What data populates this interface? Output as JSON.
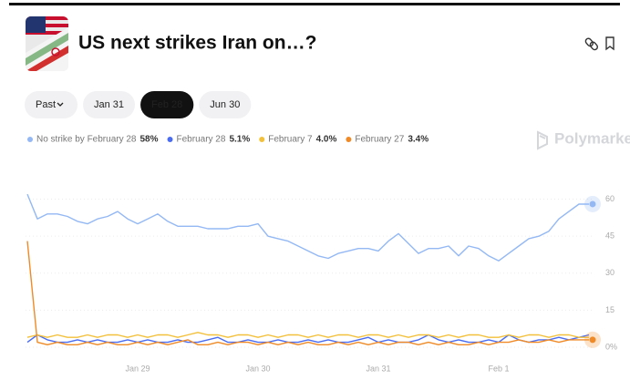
{
  "header": {
    "title": "US next strikes Iran on…?"
  },
  "filters": {
    "options": [
      "Past",
      "Jan 31",
      "Feb 28",
      "Jun 30"
    ],
    "selected": 2
  },
  "watermark": "Polymarket",
  "chart_data": {
    "type": "line",
    "categories": [
      null,
      null,
      null,
      null,
      null,
      null,
      null,
      null,
      null,
      null,
      null,
      "Jan 29",
      null,
      null,
      null,
      null,
      null,
      null,
      null,
      null,
      null,
      null,
      null,
      "Jan 30",
      null,
      null,
      null,
      null,
      null,
      null,
      null,
      null,
      null,
      null,
      null,
      "Jan 31",
      null,
      null,
      null,
      null,
      null,
      null,
      null,
      null,
      null,
      null,
      null,
      "Feb 1",
      null,
      null,
      null,
      null,
      null,
      null,
      null,
      null,
      null
    ],
    "series": [
      {
        "name": "No strike by February 28",
        "current": "58%",
        "color": "#93b8f4",
        "values": [
          62,
          52,
          54,
          54,
          53,
          51,
          50,
          52,
          53,
          55,
          52,
          50,
          52,
          54,
          51,
          49,
          49,
          49,
          48,
          48,
          48,
          49,
          49,
          50,
          45,
          44,
          43,
          41,
          39,
          37,
          36,
          38,
          39,
          40,
          40,
          39,
          43,
          46,
          42,
          38,
          40,
          40,
          41,
          37,
          41,
          40,
          37,
          35,
          38,
          41,
          44,
          45,
          47,
          52,
          55,
          58,
          58
        ]
      },
      {
        "name": "February 28",
        "current": "5.1%",
        "color": "#4a6cf0",
        "values": [
          2,
          5,
          3,
          2,
          2,
          3,
          2,
          3,
          2,
          2,
          3,
          2,
          3,
          2,
          2,
          3,
          2,
          2,
          3,
          4,
          2,
          2,
          3,
          2,
          2,
          3,
          2,
          2,
          3,
          2,
          3,
          2,
          2,
          3,
          4,
          2,
          3,
          2,
          2,
          3,
          5,
          3,
          2,
          3,
          2,
          2,
          3,
          2,
          5,
          3,
          2,
          3,
          3,
          4,
          3,
          4,
          5
        ]
      },
      {
        "name": "February 7",
        "current": "4.0%",
        "color": "#f2c03a",
        "values": [
          4,
          5,
          4,
          5,
          4,
          4,
          5,
          4,
          5,
          5,
          4,
          5,
          4,
          5,
          5,
          4,
          5,
          6,
          5,
          5,
          4,
          5,
          5,
          4,
          5,
          4,
          5,
          5,
          4,
          5,
          4,
          5,
          5,
          4,
          5,
          5,
          4,
          5,
          4,
          5,
          5,
          4,
          5,
          4,
          5,
          5,
          4,
          4,
          5,
          4,
          5,
          5,
          4,
          5,
          5,
          4,
          4
        ]
      },
      {
        "name": "February 27",
        "current": "3.4%",
        "color": "#ef8a26",
        "values": [
          43,
          2,
          1,
          2,
          1,
          1,
          2,
          1,
          2,
          1,
          1,
          2,
          1,
          2,
          1,
          2,
          3,
          1,
          1,
          2,
          1,
          2,
          2,
          1,
          2,
          1,
          2,
          1,
          2,
          1,
          1,
          2,
          1,
          2,
          1,
          2,
          1,
          2,
          2,
          1,
          2,
          1,
          2,
          1,
          1,
          2,
          1,
          2,
          2,
          3,
          2,
          2,
          3,
          2,
          3,
          3,
          3
        ]
      }
    ],
    "ylim": [
      0,
      65
    ],
    "yticks": [
      {
        "value": 0,
        "label": "0%"
      },
      15,
      30,
      45,
      60
    ],
    "grid": true,
    "y_axis_side": "right"
  }
}
